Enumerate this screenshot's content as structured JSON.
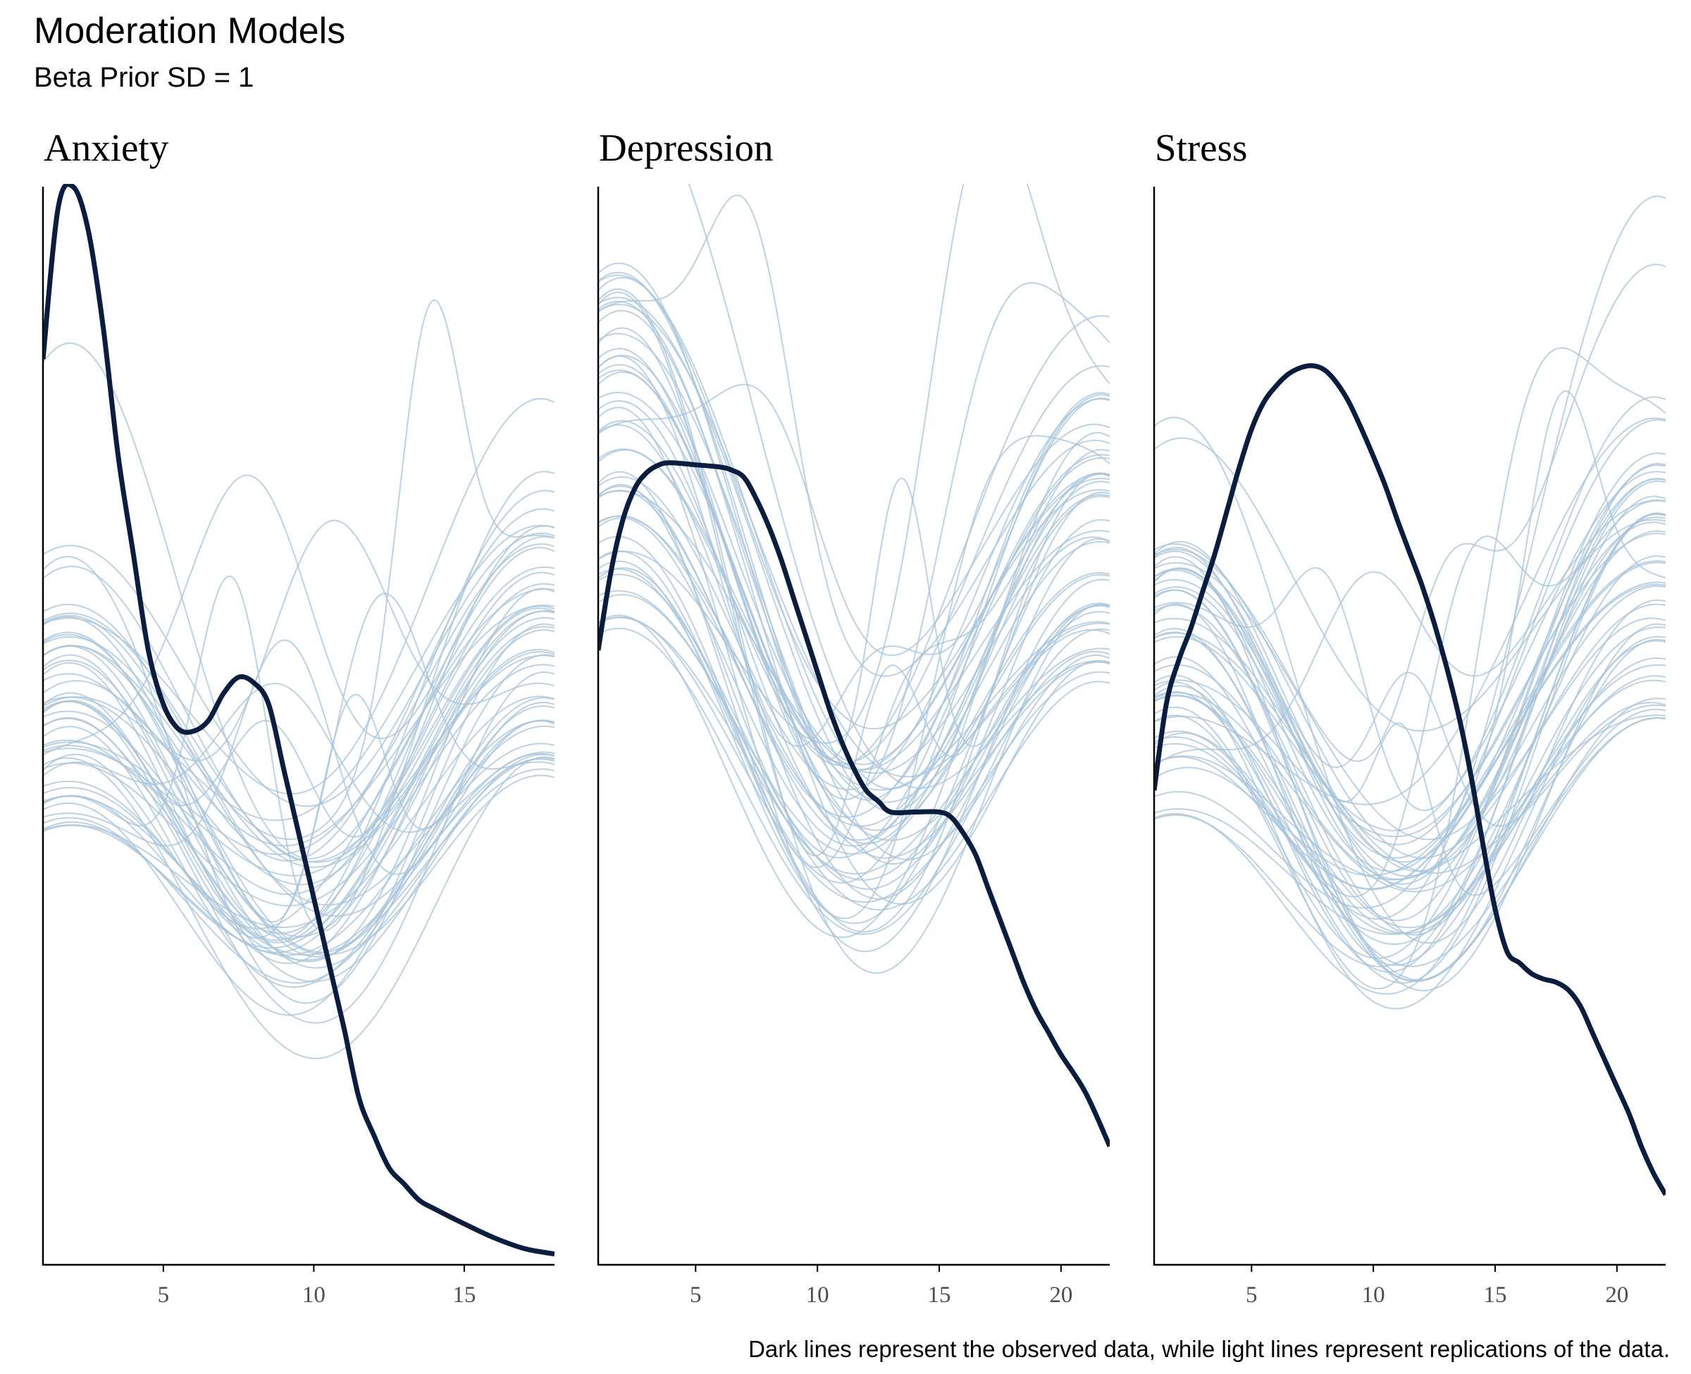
{
  "title": "Moderation Models",
  "subtitle": "Beta Prior SD = 1",
  "caption": "Dark lines represent the observed data, while light lines represent replications of the data.",
  "colors": {
    "observed": "#0b1d3f",
    "replicated": "#a9c4da",
    "axis": "#000000",
    "tick_label": "#4d4d4d"
  },
  "chart_data": [
    {
      "type": "line",
      "title": "Anxiety",
      "xlim": [
        1,
        18
      ],
      "ylim": [
        0,
        1
      ],
      "xticks": [
        5,
        10,
        15
      ],
      "xlabel": "",
      "ylabel": "",
      "n_replications": 50,
      "replication_envelope": {
        "upper_left_y": 0.65,
        "upper_right_y": 0.7,
        "trough_x": 9.6,
        "trough_y": 0.03
      },
      "observed": {
        "x": [
          1,
          1.5,
          2,
          2.5,
          3,
          3.5,
          4,
          4.5,
          5,
          5.5,
          6,
          6.5,
          7,
          7.5,
          8,
          8.5,
          9,
          9.5,
          10,
          10.5,
          11,
          11.5,
          12,
          12.5,
          13,
          13.5,
          14,
          15,
          16,
          17,
          18
        ],
        "y": [
          0.84,
          0.98,
          1.0,
          0.96,
          0.87,
          0.75,
          0.66,
          0.57,
          0.52,
          0.497,
          0.495,
          0.505,
          0.53,
          0.545,
          0.54,
          0.52,
          0.46,
          0.4,
          0.34,
          0.28,
          0.22,
          0.155,
          0.12,
          0.09,
          0.075,
          0.06,
          0.052,
          0.038,
          0.025,
          0.015,
          0.01
        ]
      }
    },
    {
      "type": "line",
      "title": "Depression",
      "xlim": [
        1,
        22
      ],
      "ylim": [
        0,
        1
      ],
      "xticks": [
        5,
        10,
        15,
        20
      ],
      "xlabel": "",
      "ylabel": "",
      "n_replications": 50,
      "replication_envelope": {
        "upper_left_y": 0.93,
        "upper_right_y": 0.84,
        "trough_x": 11.5,
        "trough_y": 0.04
      },
      "observed": {
        "x": [
          1,
          1.5,
          2,
          2.5,
          3,
          3.5,
          4,
          5,
          6,
          6.5,
          7,
          7.5,
          8,
          8.5,
          9,
          9.5,
          10,
          10.5,
          11,
          11.5,
          12,
          12.5,
          13,
          14,
          15,
          15.5,
          16,
          16.5,
          17,
          17.5,
          18,
          18.5,
          19,
          19.5,
          20,
          21,
          22
        ],
        "y": [
          0.57,
          0.64,
          0.69,
          0.72,
          0.735,
          0.742,
          0.744,
          0.742,
          0.74,
          0.737,
          0.73,
          0.71,
          0.685,
          0.655,
          0.62,
          0.585,
          0.55,
          0.515,
          0.485,
          0.46,
          0.44,
          0.43,
          0.42,
          0.42,
          0.42,
          0.415,
          0.4,
          0.38,
          0.35,
          0.32,
          0.29,
          0.26,
          0.235,
          0.215,
          0.195,
          0.16,
          0.11
        ]
      }
    },
    {
      "type": "line",
      "title": "Stress",
      "xlim": [
        1,
        22
      ],
      "ylim": [
        0,
        1
      ],
      "xticks": [
        5,
        10,
        15,
        20
      ],
      "xlabel": "",
      "ylabel": "",
      "n_replications": 50,
      "replication_envelope": {
        "upper_left_y": 0.67,
        "upper_right_y": 0.81,
        "trough_x": 11.0,
        "trough_y": 0.04
      },
      "observed": {
        "x": [
          1,
          1.5,
          2,
          2.5,
          3,
          3.5,
          4,
          4.5,
          5,
          5.5,
          6,
          6.5,
          7,
          7.5,
          8,
          8.5,
          9,
          9.5,
          10,
          10.5,
          11,
          11.5,
          12,
          12.5,
          13,
          13.5,
          14,
          14.5,
          15,
          15.5,
          16,
          16.5,
          17,
          17.5,
          18,
          18.5,
          19,
          19.5,
          20,
          20.5,
          21,
          21.5,
          22
        ],
        "y": [
          0.44,
          0.52,
          0.56,
          0.59,
          0.625,
          0.66,
          0.7,
          0.74,
          0.775,
          0.8,
          0.815,
          0.826,
          0.832,
          0.834,
          0.83,
          0.818,
          0.8,
          0.776,
          0.75,
          0.722,
          0.69,
          0.66,
          0.63,
          0.595,
          0.555,
          0.51,
          0.455,
          0.39,
          0.33,
          0.29,
          0.28,
          0.27,
          0.265,
          0.262,
          0.255,
          0.24,
          0.215,
          0.19,
          0.165,
          0.14,
          0.11,
          0.085,
          0.065
        ]
      }
    }
  ]
}
